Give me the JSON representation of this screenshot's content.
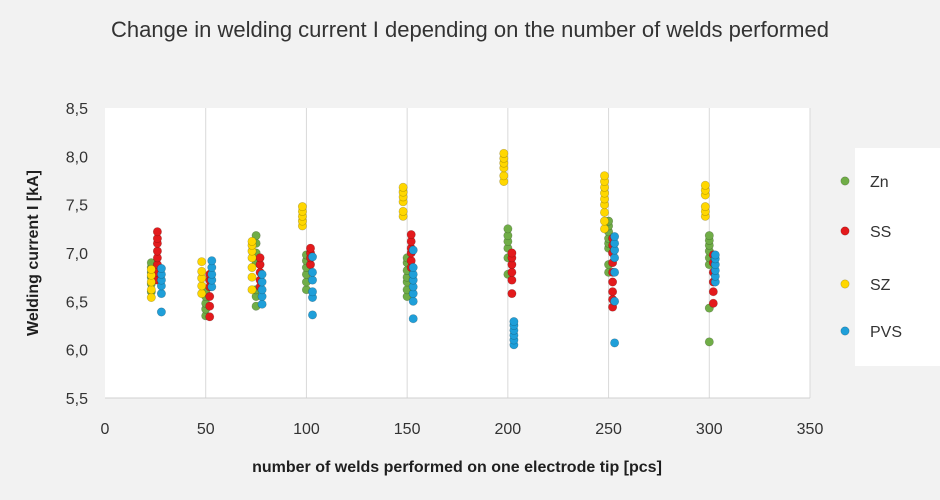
{
  "chart_data": {
    "type": "scatter",
    "title": "Change in welding current I depending on the number of welds performed",
    "xlabel": "number of welds performed on one electrode tip [pcs]",
    "ylabel": "Welding current I [kA]",
    "xlim": [
      0,
      350
    ],
    "ylim": [
      5.5,
      8.5
    ],
    "x_ticks": [
      "0",
      "50",
      "100",
      "150",
      "200",
      "250",
      "300",
      "350"
    ],
    "y_ticks": [
      "5,5",
      "6,0",
      "6,5",
      "7,0",
      "7,5",
      "8,0",
      "8,5"
    ],
    "grid": "vertical",
    "legend_position": "right",
    "series": [
      {
        "name": "Zn",
        "color": "#70ad47",
        "points": [
          [
            23,
            6.6
          ],
          [
            23,
            6.68
          ],
          [
            23,
            6.75
          ],
          [
            23,
            6.8
          ],
          [
            23,
            6.85
          ],
          [
            23,
            6.9
          ],
          [
            50,
            6.35
          ],
          [
            50,
            6.42
          ],
          [
            50,
            6.48
          ],
          [
            50,
            6.55
          ],
          [
            50,
            6.6
          ],
          [
            75,
            6.45
          ],
          [
            75,
            6.55
          ],
          [
            75,
            6.62
          ],
          [
            75,
            6.9
          ],
          [
            75,
            7.0
          ],
          [
            75,
            7.1
          ],
          [
            75,
            7.18
          ],
          [
            100,
            6.62
          ],
          [
            100,
            6.7
          ],
          [
            100,
            6.78
          ],
          [
            100,
            6.85
          ],
          [
            100,
            6.92
          ],
          [
            100,
            6.98
          ],
          [
            150,
            6.55
          ],
          [
            150,
            6.62
          ],
          [
            150,
            6.7
          ],
          [
            150,
            6.75
          ],
          [
            150,
            6.82
          ],
          [
            150,
            6.9
          ],
          [
            150,
            6.95
          ],
          [
            200,
            6.78
          ],
          [
            200,
            6.95
          ],
          [
            200,
            7.05
          ],
          [
            200,
            7.12
          ],
          [
            200,
            7.18
          ],
          [
            200,
            7.25
          ],
          [
            250,
            6.8
          ],
          [
            250,
            6.88
          ],
          [
            250,
            7.05
          ],
          [
            250,
            7.1
          ],
          [
            250,
            7.15
          ],
          [
            250,
            7.22
          ],
          [
            250,
            7.28
          ],
          [
            250,
            7.33
          ],
          [
            300,
            6.08
          ],
          [
            300,
            6.43
          ],
          [
            300,
            6.88
          ],
          [
            300,
            6.95
          ],
          [
            300,
            7.02
          ],
          [
            300,
            7.08
          ],
          [
            300,
            7.13
          ],
          [
            300,
            7.18
          ]
        ]
      },
      {
        "name": "SS",
        "color": "#e31a1c",
        "points": [
          [
            26,
            6.72
          ],
          [
            26,
            6.8
          ],
          [
            26,
            6.88
          ],
          [
            26,
            6.95
          ],
          [
            26,
            7.02
          ],
          [
            26,
            7.1
          ],
          [
            26,
            7.15
          ],
          [
            26,
            7.22
          ],
          [
            52,
            6.34
          ],
          [
            52,
            6.45
          ],
          [
            52,
            6.55
          ],
          [
            52,
            6.65
          ],
          [
            52,
            6.72
          ],
          [
            52,
            6.78
          ],
          [
            77,
            6.65
          ],
          [
            77,
            6.72
          ],
          [
            77,
            6.8
          ],
          [
            77,
            6.88
          ],
          [
            77,
            6.95
          ],
          [
            102,
            6.88
          ],
          [
            102,
            6.95
          ],
          [
            102,
            7.0
          ],
          [
            102,
            7.05
          ],
          [
            152,
            6.85
          ],
          [
            152,
            6.92
          ],
          [
            152,
            7.0
          ],
          [
            152,
            7.05
          ],
          [
            152,
            7.12
          ],
          [
            152,
            7.19
          ],
          [
            202,
            6.58
          ],
          [
            202,
            6.72
          ],
          [
            202,
            6.8
          ],
          [
            202,
            6.88
          ],
          [
            202,
            6.95
          ],
          [
            202,
            7.0
          ],
          [
            252,
            6.44
          ],
          [
            252,
            6.52
          ],
          [
            252,
            6.6
          ],
          [
            252,
            6.7
          ],
          [
            252,
            6.8
          ],
          [
            252,
            6.9
          ],
          [
            252,
            7.0
          ],
          [
            252,
            7.08
          ],
          [
            252,
            7.15
          ],
          [
            302,
            6.48
          ],
          [
            302,
            6.6
          ],
          [
            302,
            6.7
          ],
          [
            302,
            6.8
          ],
          [
            302,
            6.9
          ],
          [
            302,
            6.98
          ]
        ]
      },
      {
        "name": "SZ",
        "color": "#ffd700",
        "points": [
          [
            23,
            6.54
          ],
          [
            23,
            6.62
          ],
          [
            23,
            6.7
          ],
          [
            23,
            6.77
          ],
          [
            23,
            6.83
          ],
          [
            48,
            6.58
          ],
          [
            48,
            6.66
          ],
          [
            48,
            6.74
          ],
          [
            48,
            6.81
          ],
          [
            48,
            6.91
          ],
          [
            73,
            6.62
          ],
          [
            73,
            6.75
          ],
          [
            73,
            6.85
          ],
          [
            73,
            6.95
          ],
          [
            73,
            7.02
          ],
          [
            73,
            7.08
          ],
          [
            73,
            7.12
          ],
          [
            98,
            7.28
          ],
          [
            98,
            7.33
          ],
          [
            98,
            7.38
          ],
          [
            98,
            7.43
          ],
          [
            98,
            7.48
          ],
          [
            148,
            7.38
          ],
          [
            148,
            7.43
          ],
          [
            148,
            7.53
          ],
          [
            148,
            7.58
          ],
          [
            148,
            7.63
          ],
          [
            148,
            7.68
          ],
          [
            198,
            7.74
          ],
          [
            198,
            7.8
          ],
          [
            198,
            7.88
          ],
          [
            198,
            7.93
          ],
          [
            198,
            7.98
          ],
          [
            198,
            8.03
          ],
          [
            248,
            7.25
          ],
          [
            248,
            7.33
          ],
          [
            248,
            7.42
          ],
          [
            248,
            7.5
          ],
          [
            248,
            7.56
          ],
          [
            248,
            7.62
          ],
          [
            248,
            7.68
          ],
          [
            248,
            7.74
          ],
          [
            248,
            7.8
          ],
          [
            298,
            7.38
          ],
          [
            298,
            7.43
          ],
          [
            298,
            7.48
          ],
          [
            298,
            7.6
          ],
          [
            298,
            7.65
          ],
          [
            298,
            7.7
          ]
        ]
      },
      {
        "name": "PVS",
        "color": "#1f9fd9",
        "points": [
          [
            28,
            6.39
          ],
          [
            28,
            6.58
          ],
          [
            28,
            6.66
          ],
          [
            28,
            6.72
          ],
          [
            28,
            6.78
          ],
          [
            28,
            6.84
          ],
          [
            53,
            6.65
          ],
          [
            53,
            6.72
          ],
          [
            53,
            6.78
          ],
          [
            53,
            6.85
          ],
          [
            53,
            6.92
          ],
          [
            78,
            6.47
          ],
          [
            78,
            6.55
          ],
          [
            78,
            6.62
          ],
          [
            78,
            6.7
          ],
          [
            78,
            6.78
          ],
          [
            103,
            6.36
          ],
          [
            103,
            6.54
          ],
          [
            103,
            6.6
          ],
          [
            103,
            6.72
          ],
          [
            103,
            6.8
          ],
          [
            103,
            6.96
          ],
          [
            153,
            6.32
          ],
          [
            153,
            6.5
          ],
          [
            153,
            6.58
          ],
          [
            153,
            6.65
          ],
          [
            153,
            6.72
          ],
          [
            153,
            6.78
          ],
          [
            153,
            6.85
          ],
          [
            153,
            7.03
          ],
          [
            203,
            6.05
          ],
          [
            203,
            6.1
          ],
          [
            203,
            6.15
          ],
          [
            203,
            6.2
          ],
          [
            203,
            6.25
          ],
          [
            203,
            6.29
          ],
          [
            253,
            6.07
          ],
          [
            253,
            6.5
          ],
          [
            253,
            6.8
          ],
          [
            253,
            6.95
          ],
          [
            253,
            7.03
          ],
          [
            253,
            7.1
          ],
          [
            253,
            7.17
          ],
          [
            303,
            6.7
          ],
          [
            303,
            6.76
          ],
          [
            303,
            6.82
          ],
          [
            303,
            6.88
          ],
          [
            303,
            6.94
          ],
          [
            303,
            6.98
          ]
        ]
      }
    ]
  }
}
